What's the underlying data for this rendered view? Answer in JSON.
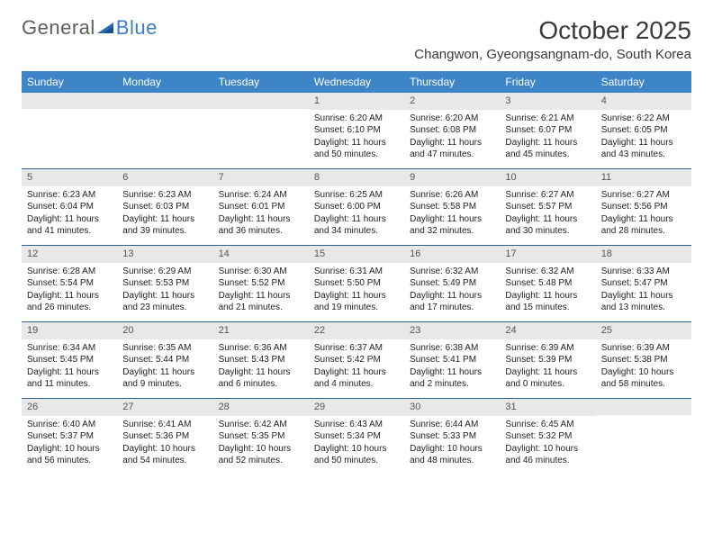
{
  "logo": {
    "text1": "General",
    "text2": "Blue"
  },
  "title": "October 2025",
  "location": "Changwon, Gyeongsangnam-do, South Korea",
  "colors": {
    "header_bg": "#3d85c6",
    "header_text": "#ffffff",
    "daynum_bg": "#e8e8e8",
    "row_divider": "#2f5f8f",
    "logo_gray": "#5a5f63",
    "logo_blue": "#3d7cc9",
    "text": "#3a3a3a"
  },
  "dayNames": [
    "Sunday",
    "Monday",
    "Tuesday",
    "Wednesday",
    "Thursday",
    "Friday",
    "Saturday"
  ],
  "weeks": [
    [
      null,
      null,
      null,
      {
        "n": "1",
        "sr": "6:20 AM",
        "ss": "6:10 PM",
        "dl": "11 hours and 50 minutes."
      },
      {
        "n": "2",
        "sr": "6:20 AM",
        "ss": "6:08 PM",
        "dl": "11 hours and 47 minutes."
      },
      {
        "n": "3",
        "sr": "6:21 AM",
        "ss": "6:07 PM",
        "dl": "11 hours and 45 minutes."
      },
      {
        "n": "4",
        "sr": "6:22 AM",
        "ss": "6:05 PM",
        "dl": "11 hours and 43 minutes."
      }
    ],
    [
      {
        "n": "5",
        "sr": "6:23 AM",
        "ss": "6:04 PM",
        "dl": "11 hours and 41 minutes."
      },
      {
        "n": "6",
        "sr": "6:23 AM",
        "ss": "6:03 PM",
        "dl": "11 hours and 39 minutes."
      },
      {
        "n": "7",
        "sr": "6:24 AM",
        "ss": "6:01 PM",
        "dl": "11 hours and 36 minutes."
      },
      {
        "n": "8",
        "sr": "6:25 AM",
        "ss": "6:00 PM",
        "dl": "11 hours and 34 minutes."
      },
      {
        "n": "9",
        "sr": "6:26 AM",
        "ss": "5:58 PM",
        "dl": "11 hours and 32 minutes."
      },
      {
        "n": "10",
        "sr": "6:27 AM",
        "ss": "5:57 PM",
        "dl": "11 hours and 30 minutes."
      },
      {
        "n": "11",
        "sr": "6:27 AM",
        "ss": "5:56 PM",
        "dl": "11 hours and 28 minutes."
      }
    ],
    [
      {
        "n": "12",
        "sr": "6:28 AM",
        "ss": "5:54 PM",
        "dl": "11 hours and 26 minutes."
      },
      {
        "n": "13",
        "sr": "6:29 AM",
        "ss": "5:53 PM",
        "dl": "11 hours and 23 minutes."
      },
      {
        "n": "14",
        "sr": "6:30 AM",
        "ss": "5:52 PM",
        "dl": "11 hours and 21 minutes."
      },
      {
        "n": "15",
        "sr": "6:31 AM",
        "ss": "5:50 PM",
        "dl": "11 hours and 19 minutes."
      },
      {
        "n": "16",
        "sr": "6:32 AM",
        "ss": "5:49 PM",
        "dl": "11 hours and 17 minutes."
      },
      {
        "n": "17",
        "sr": "6:32 AM",
        "ss": "5:48 PM",
        "dl": "11 hours and 15 minutes."
      },
      {
        "n": "18",
        "sr": "6:33 AM",
        "ss": "5:47 PM",
        "dl": "11 hours and 13 minutes."
      }
    ],
    [
      {
        "n": "19",
        "sr": "6:34 AM",
        "ss": "5:45 PM",
        "dl": "11 hours and 11 minutes."
      },
      {
        "n": "20",
        "sr": "6:35 AM",
        "ss": "5:44 PM",
        "dl": "11 hours and 9 minutes."
      },
      {
        "n": "21",
        "sr": "6:36 AM",
        "ss": "5:43 PM",
        "dl": "11 hours and 6 minutes."
      },
      {
        "n": "22",
        "sr": "6:37 AM",
        "ss": "5:42 PM",
        "dl": "11 hours and 4 minutes."
      },
      {
        "n": "23",
        "sr": "6:38 AM",
        "ss": "5:41 PM",
        "dl": "11 hours and 2 minutes."
      },
      {
        "n": "24",
        "sr": "6:39 AM",
        "ss": "5:39 PM",
        "dl": "11 hours and 0 minutes."
      },
      {
        "n": "25",
        "sr": "6:39 AM",
        "ss": "5:38 PM",
        "dl": "10 hours and 58 minutes."
      }
    ],
    [
      {
        "n": "26",
        "sr": "6:40 AM",
        "ss": "5:37 PM",
        "dl": "10 hours and 56 minutes."
      },
      {
        "n": "27",
        "sr": "6:41 AM",
        "ss": "5:36 PM",
        "dl": "10 hours and 54 minutes."
      },
      {
        "n": "28",
        "sr": "6:42 AM",
        "ss": "5:35 PM",
        "dl": "10 hours and 52 minutes."
      },
      {
        "n": "29",
        "sr": "6:43 AM",
        "ss": "5:34 PM",
        "dl": "10 hours and 50 minutes."
      },
      {
        "n": "30",
        "sr": "6:44 AM",
        "ss": "5:33 PM",
        "dl": "10 hours and 48 minutes."
      },
      {
        "n": "31",
        "sr": "6:45 AM",
        "ss": "5:32 PM",
        "dl": "10 hours and 46 minutes."
      },
      null
    ]
  ],
  "labels": {
    "sunrise": "Sunrise:",
    "sunset": "Sunset:",
    "daylight": "Daylight:"
  }
}
